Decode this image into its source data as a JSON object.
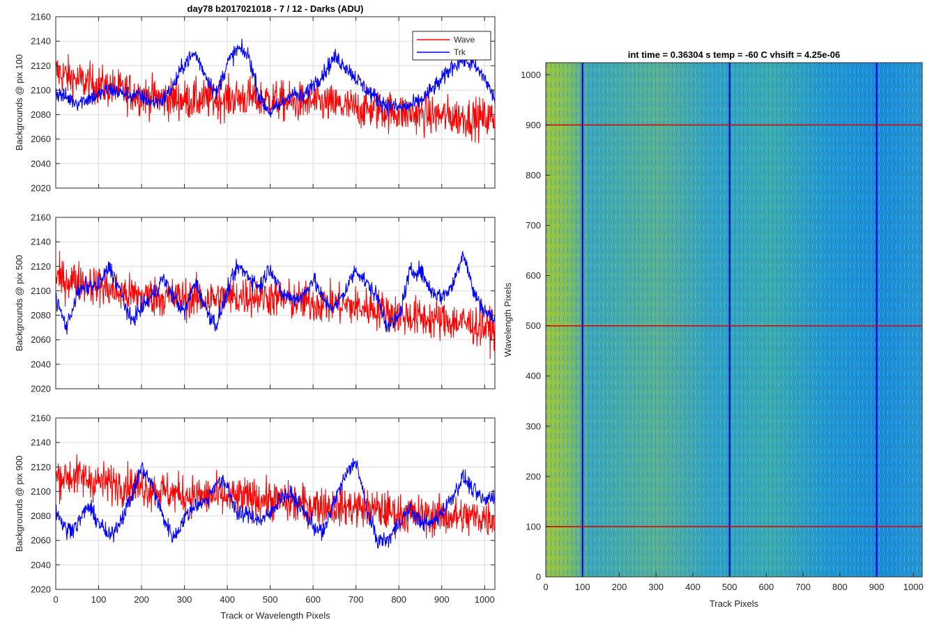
{
  "figure_title": "day78 b2017021018 - 7 / 12 - Darks (ADU)",
  "colors": {
    "wave": "#ff0000",
    "trk": "#0000ff"
  },
  "chart_data": [
    {
      "type": "line",
      "ylabel": "Backgrounds @ pix 100",
      "xlabel": "",
      "xlim": [
        0,
        1024
      ],
      "ylim": [
        2020,
        2160
      ],
      "xticks": [
        0,
        100,
        200,
        300,
        400,
        500,
        600,
        700,
        800,
        900,
        1000
      ],
      "yticks": [
        2020,
        2040,
        2060,
        2080,
        2100,
        2120,
        2140,
        2160
      ],
      "grid": true,
      "legend": {
        "location": "top-right",
        "entries": [
          "Wave",
          "Trk"
        ]
      },
      "series": [
        {
          "name": "Wave",
          "color": "#ff0000",
          "x": [
            0,
            50,
            100,
            150,
            200,
            250,
            300,
            350,
            400,
            450,
            500,
            550,
            600,
            650,
            700,
            750,
            800,
            850,
            900,
            950,
            1000,
            1024
          ],
          "values": [
            2115,
            2108,
            2104,
            2100,
            2096,
            2093,
            2092,
            2092,
            2093,
            2094,
            2092,
            2090,
            2090,
            2088,
            2085,
            2084,
            2082,
            2080,
            2079,
            2078,
            2077,
            2077
          ]
        },
        {
          "name": "Trk",
          "color": "#0000ff",
          "x": [
            0,
            25,
            50,
            75,
            100,
            125,
            150,
            175,
            200,
            225,
            250,
            275,
            300,
            325,
            350,
            375,
            400,
            425,
            450,
            475,
            500,
            525,
            550,
            575,
            600,
            625,
            650,
            675,
            700,
            725,
            750,
            775,
            800,
            825,
            850,
            875,
            900,
            925,
            950,
            975,
            1000,
            1024
          ],
          "values": [
            2098,
            2094,
            2090,
            2093,
            2096,
            2101,
            2098,
            2096,
            2095,
            2090,
            2092,
            2104,
            2122,
            2130,
            2112,
            2097,
            2122,
            2134,
            2128,
            2094,
            2082,
            2088,
            2098,
            2093,
            2105,
            2114,
            2127,
            2120,
            2110,
            2100,
            2093,
            2087,
            2086,
            2087,
            2091,
            2100,
            2108,
            2120,
            2125,
            2120,
            2110,
            2092
          ]
        }
      ]
    },
    {
      "type": "line",
      "ylabel": "Backgrounds @ pix 500",
      "xlabel": "",
      "xlim": [
        0,
        1024
      ],
      "ylim": [
        2020,
        2160
      ],
      "xticks": [
        0,
        100,
        200,
        300,
        400,
        500,
        600,
        700,
        800,
        900,
        1000
      ],
      "yticks": [
        2020,
        2040,
        2060,
        2080,
        2100,
        2120,
        2140,
        2160
      ],
      "grid": true,
      "series": [
        {
          "name": "Wave",
          "color": "#ff0000",
          "x": [
            0,
            50,
            100,
            150,
            200,
            250,
            300,
            350,
            400,
            450,
            500,
            550,
            600,
            650,
            700,
            750,
            800,
            850,
            900,
            950,
            1000,
            1024
          ],
          "values": [
            2110,
            2108,
            2104,
            2098,
            2096,
            2095,
            2094,
            2093,
            2094,
            2096,
            2095,
            2092,
            2090,
            2089,
            2087,
            2085,
            2080,
            2078,
            2076,
            2074,
            2070,
            2068
          ]
        },
        {
          "name": "Trk",
          "color": "#0000ff",
          "x": [
            0,
            25,
            50,
            75,
            100,
            125,
            150,
            175,
            200,
            225,
            250,
            275,
            300,
            325,
            350,
            375,
            400,
            425,
            450,
            475,
            500,
            525,
            550,
            575,
            600,
            625,
            650,
            675,
            700,
            725,
            750,
            775,
            800,
            825,
            850,
            875,
            900,
            925,
            950,
            975,
            1000,
            1024
          ],
          "values": [
            2094,
            2070,
            2098,
            2104,
            2104,
            2120,
            2100,
            2075,
            2086,
            2096,
            2110,
            2095,
            2082,
            2108,
            2085,
            2072,
            2100,
            2120,
            2112,
            2103,
            2120,
            2098,
            2094,
            2095,
            2110,
            2092,
            2086,
            2100,
            2118,
            2106,
            2095,
            2070,
            2078,
            2115,
            2117,
            2100,
            2095,
            2104,
            2132,
            2098,
            2084,
            2076
          ]
        }
      ]
    },
    {
      "type": "line",
      "ylabel": "Backgrounds @ pix 900",
      "xlabel": "Track or Wavelength Pixels",
      "xlim": [
        0,
        1024
      ],
      "ylim": [
        2020,
        2160
      ],
      "xticks": [
        0,
        100,
        200,
        300,
        400,
        500,
        600,
        700,
        800,
        900,
        1000
      ],
      "yticks": [
        2020,
        2040,
        2060,
        2080,
        2100,
        2120,
        2140,
        2160
      ],
      "grid": true,
      "series": [
        {
          "name": "Wave",
          "color": "#ff0000",
          "x": [
            0,
            50,
            100,
            150,
            200,
            250,
            300,
            350,
            400,
            450,
            500,
            550,
            600,
            650,
            700,
            750,
            800,
            850,
            900,
            950,
            1000,
            1024
          ],
          "values": [
            2112,
            2112,
            2108,
            2106,
            2104,
            2100,
            2097,
            2096,
            2095,
            2095,
            2093,
            2090,
            2089,
            2088,
            2087,
            2085,
            2082,
            2080,
            2080,
            2079,
            2079,
            2078
          ]
        },
        {
          "name": "Trk",
          "color": "#0000ff",
          "x": [
            0,
            25,
            50,
            75,
            100,
            125,
            150,
            175,
            200,
            225,
            250,
            275,
            300,
            325,
            350,
            375,
            400,
            425,
            450,
            475,
            500,
            525,
            550,
            575,
            600,
            625,
            650,
            675,
            700,
            725,
            750,
            775,
            800,
            825,
            850,
            875,
            900,
            925,
            950,
            975,
            1000,
            1024
          ],
          "values": [
            2085,
            2068,
            2073,
            2088,
            2075,
            2062,
            2076,
            2094,
            2120,
            2105,
            2079,
            2062,
            2078,
            2089,
            2092,
            2108,
            2105,
            2080,
            2082,
            2076,
            2081,
            2096,
            2097,
            2085,
            2072,
            2066,
            2093,
            2112,
            2126,
            2085,
            2060,
            2060,
            2075,
            2085,
            2076,
            2073,
            2083,
            2096,
            2112,
            2100,
            2092,
            2098
          ]
        }
      ]
    },
    {
      "type": "heatmap",
      "title": "int time = 0.36304 s    temp = -60 C    vhsift = 4.25e-06",
      "xlabel": "Track Pixels",
      "ylabel": "Wavelength Pixels",
      "xlim": [
        0,
        1024
      ],
      "ylim": [
        0,
        1024
      ],
      "xticks": [
        0,
        100,
        200,
        300,
        400,
        500,
        600,
        700,
        800,
        900,
        1000
      ],
      "yticks": [
        0,
        100,
        200,
        300,
        400,
        500,
        600,
        700,
        800,
        900,
        1000
      ],
      "colormap": [
        "#0a6fd6",
        "#1a9ac9",
        "#2fb3a0",
        "#9fc43a",
        "#d8c040"
      ],
      "vertical_markers": {
        "color": "#0000c8",
        "x": [
          100,
          500,
          900
        ]
      },
      "horizontal_markers": {
        "color": "#e00000",
        "y": [
          100,
          500,
          900
        ]
      }
    }
  ]
}
